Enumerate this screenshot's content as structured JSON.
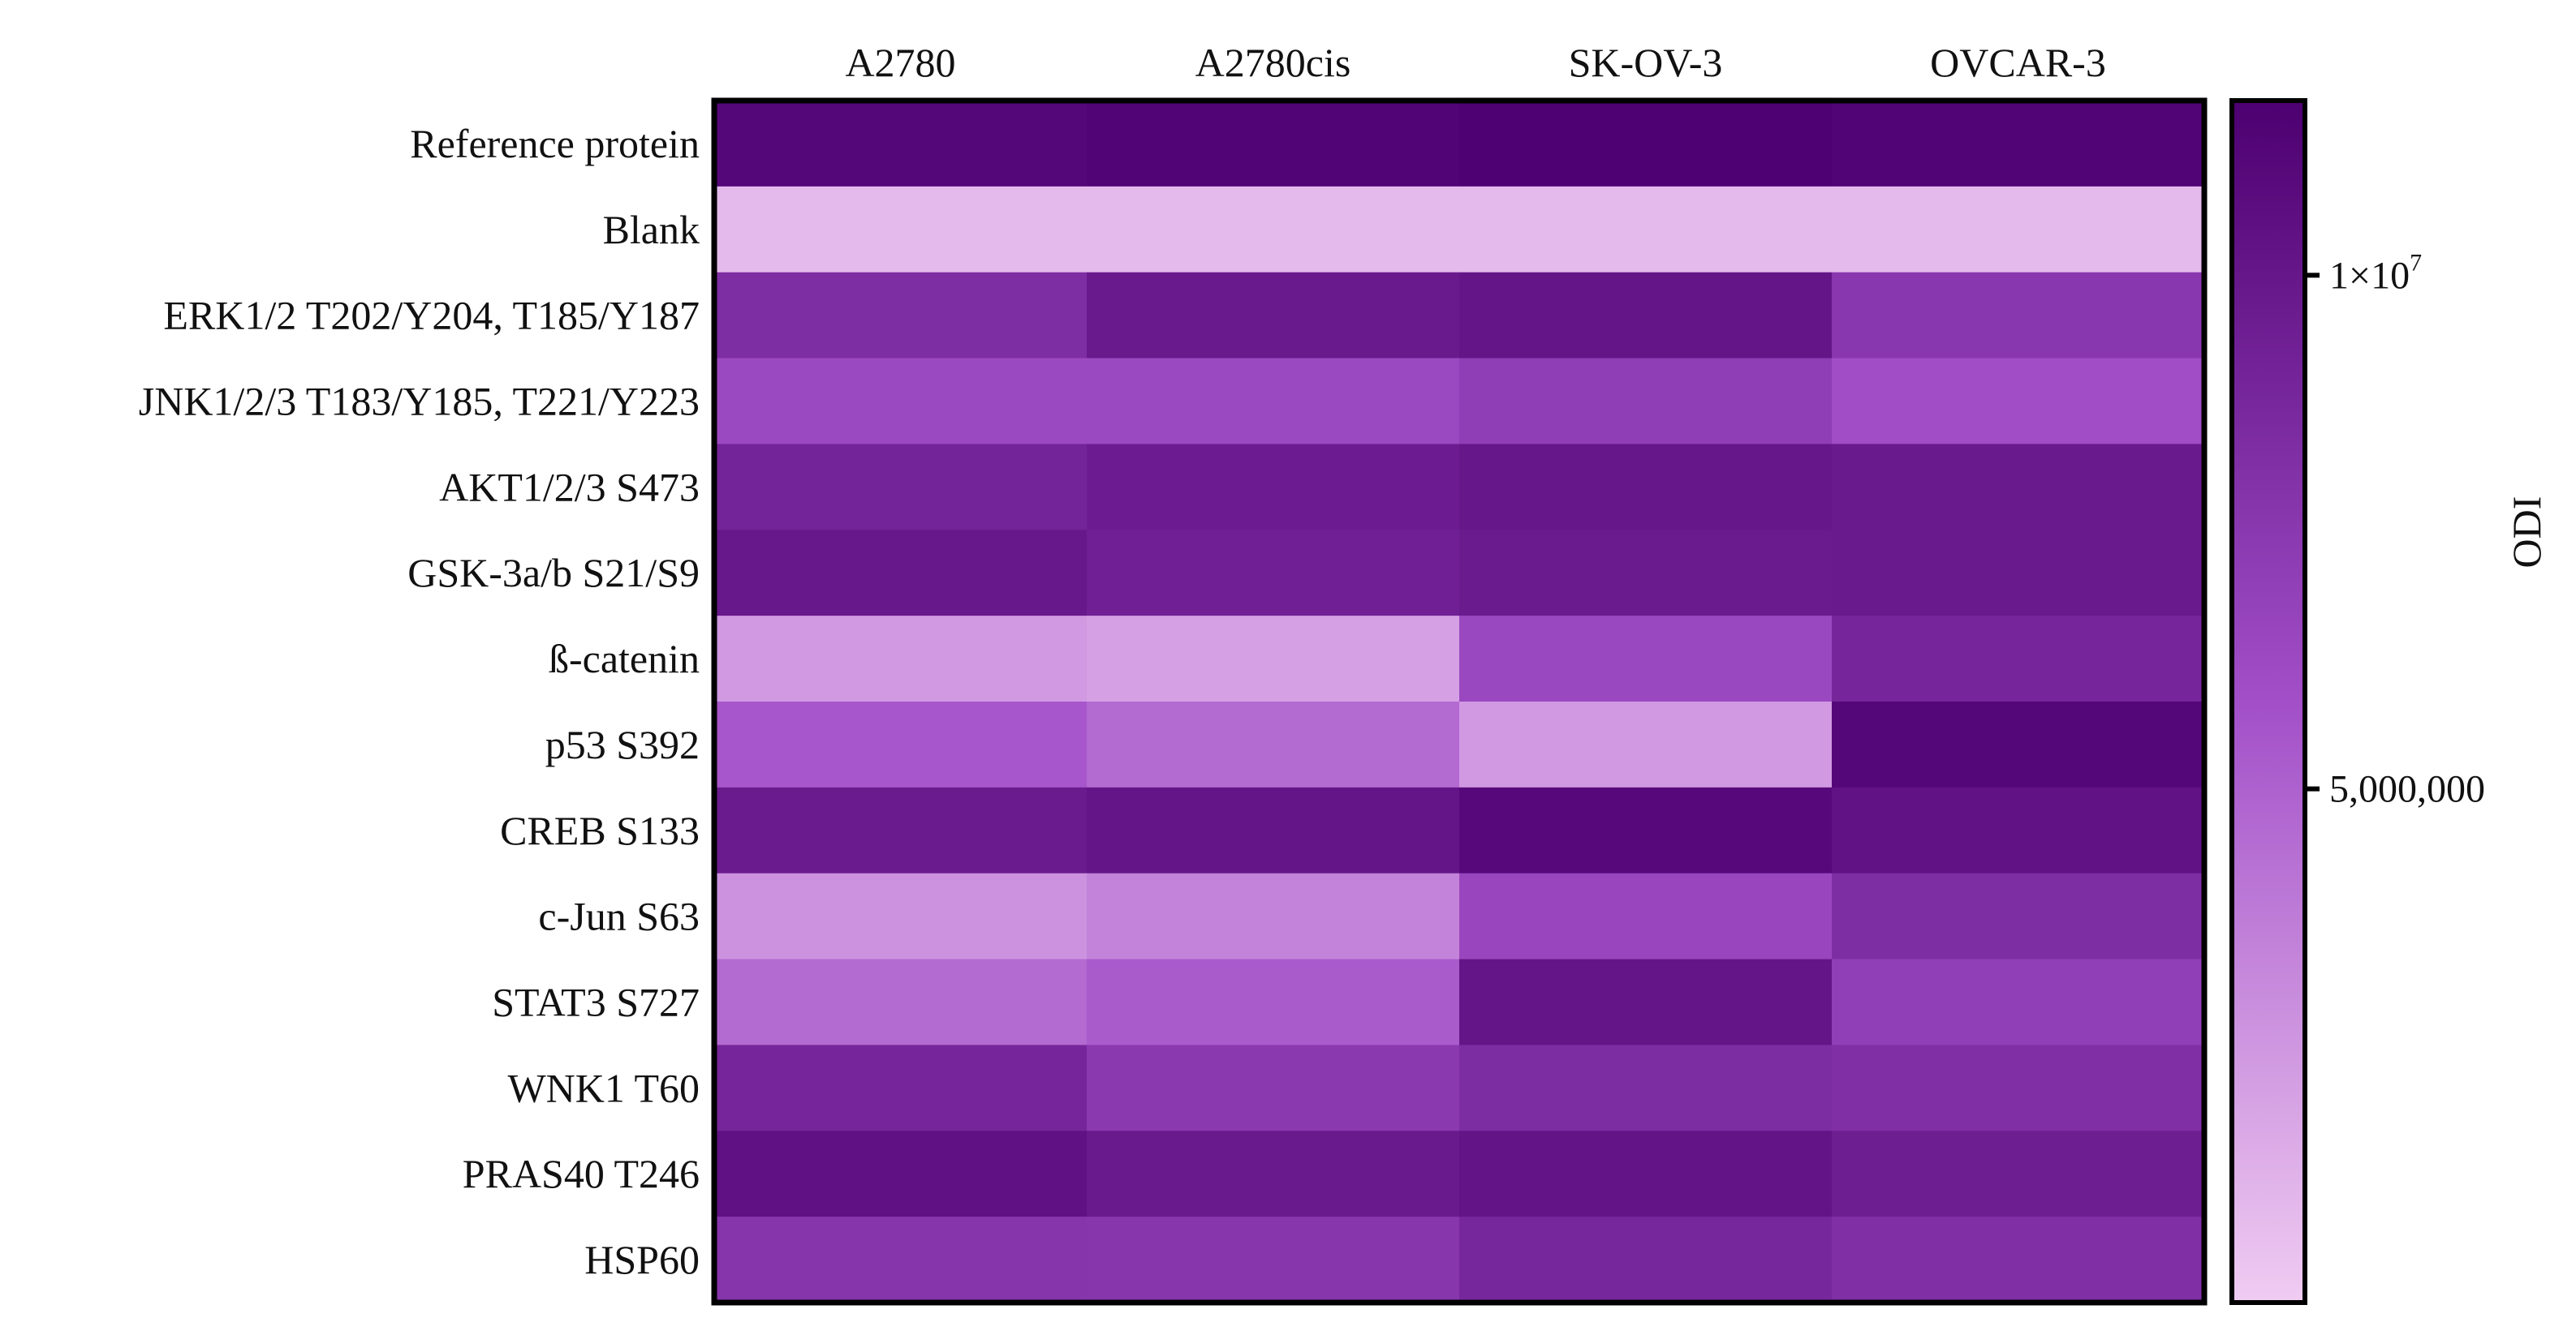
{
  "chart_data": {
    "type": "heatmap",
    "title": "",
    "columns": [
      "A2780",
      "A2780cis",
      "SK-OV-3",
      "OVCAR-3"
    ],
    "rows": [
      "Reference protein",
      "Blank",
      "ERK1/2 T202/Y204, T185/Y187",
      "JNK1/2/3 T183/Y185, T221/Y223",
      "AKT1/2/3 S473",
      "GSK-3a/b S21/S9",
      "ß-catenin",
      "p53 S392",
      "CREB S133",
      "c-Jun S63",
      "STAT3 S727",
      "WNK1 T60",
      "PRAS40 T246",
      "HSP60"
    ],
    "values": [
      [
        11200000,
        11400000,
        11600000,
        11400000
      ],
      [
        900000,
        900000,
        900000,
        900000
      ],
      [
        8300000,
        9800000,
        10100000,
        7600000
      ],
      [
        6300000,
        6300000,
        7100000,
        6000000
      ],
      [
        9000000,
        9600000,
        10000000,
        9800000
      ],
      [
        9900000,
        9300000,
        9700000,
        9800000
      ],
      [
        2400000,
        2000000,
        6400000,
        8900000
      ],
      [
        5500000,
        4600000,
        2400000,
        11200000
      ],
      [
        9700000,
        10100000,
        11000000,
        10300000
      ],
      [
        2700000,
        3400000,
        6500000,
        8300000
      ],
      [
        4600000,
        5300000,
        10100000,
        7000000
      ],
      [
        8900000,
        7500000,
        8400000,
        8200000
      ],
      [
        10400000,
        9800000,
        10200000,
        9500000
      ],
      [
        7800000,
        7700000,
        8800000,
        8200000
      ]
    ],
    "colorbar": {
      "label": "ODI",
      "range": [
        0,
        11700000
      ],
      "ticks": [
        {
          "value": 10000000,
          "label": "1×10",
          "exp": "7"
        },
        {
          "value": 5000000,
          "label": "5,000,000",
          "exp": ""
        }
      ],
      "low_color": "#f0ccf2",
      "mid_color": "#a24fc8",
      "high_color": "#4d0070"
    }
  }
}
